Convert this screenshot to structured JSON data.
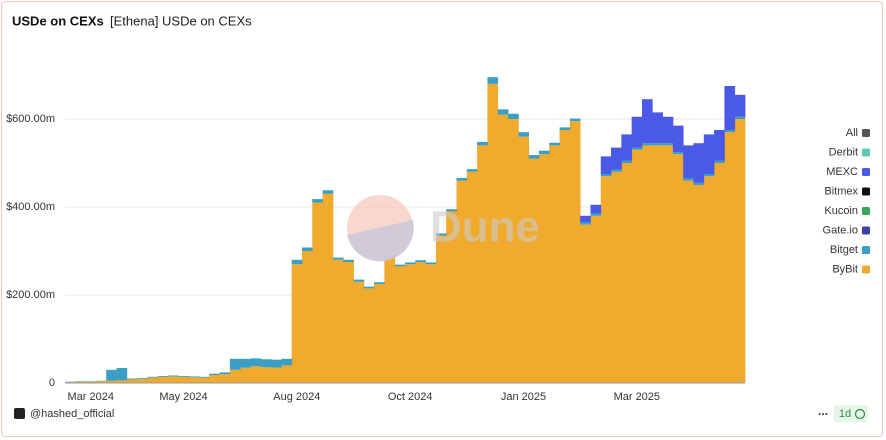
{
  "chart_data": {
    "type": "stacked_bar",
    "title": "USDe on CEXs",
    "subtitle": "[Ethena] USDe on CEXs",
    "watermark": "Dune",
    "footer": "@hashed_official",
    "menu": "...",
    "interval": "1d",
    "legend_all": {
      "label": "All",
      "color": "#555555"
    },
    "categories": [
      null,
      null,
      "Mar 2024",
      null,
      null,
      null,
      null,
      null,
      null,
      null,
      null,
      "May 2024",
      null,
      null,
      null,
      null,
      null,
      null,
      null,
      null,
      null,
      null,
      "Aug 2024",
      null,
      null,
      null,
      null,
      null,
      null,
      null,
      null,
      null,
      null,
      "Oct 2024",
      null,
      null,
      null,
      null,
      null,
      null,
      null,
      null,
      null,
      null,
      "Jan 2025",
      null,
      null,
      null,
      null,
      null,
      null,
      null,
      null,
      null,
      null,
      "Mar 2025",
      null,
      null,
      null,
      null,
      null,
      null,
      null,
      null,
      null,
      null
    ],
    "ylim": [
      0,
      750
    ],
    "yticks": [
      0,
      {
        "value": 200,
        "label": "$200.00m"
      },
      {
        "value": 400,
        "label": "$400.00m"
      },
      {
        "value": 600,
        "label": "$600.00m"
      }
    ],
    "grid": true,
    "legend": "right",
    "series": [
      {
        "name": "Derbit",
        "color": "#5cc9b6",
        "values": [
          0,
          0,
          0,
          0,
          0,
          0,
          0,
          0,
          0,
          0,
          0,
          0,
          0,
          0,
          0,
          0,
          0,
          0,
          0,
          0,
          0,
          0,
          0,
          0,
          0,
          0,
          0,
          0,
          0,
          0,
          0,
          0,
          0,
          0,
          0,
          0,
          0,
          0,
          0,
          0,
          0,
          0,
          0,
          0,
          0,
          0,
          0,
          0,
          0,
          0,
          0,
          0,
          0,
          0,
          0,
          0,
          0,
          0,
          0,
          0,
          0,
          0,
          0,
          0,
          0,
          0
        ]
      },
      {
        "name": "MEXC",
        "color": "#4a5ae6",
        "values": [
          0,
          0,
          0,
          0,
          0,
          0,
          0,
          0,
          0,
          0,
          0,
          0,
          0,
          0,
          0,
          0,
          0,
          0,
          0,
          0,
          0,
          0,
          0,
          0,
          0,
          0,
          0,
          0,
          0,
          0,
          0,
          0,
          0,
          0,
          0,
          0,
          0,
          0,
          0,
          0,
          0,
          0,
          0,
          0,
          0,
          0,
          0,
          0,
          0,
          0,
          15,
          20,
          40,
          50,
          60,
          70,
          100,
          70,
          60,
          60,
          75,
          90,
          90,
          70,
          100,
          50
        ]
      },
      {
        "name": "Bitmex",
        "color": "#111111",
        "values": [
          0,
          0,
          0,
          0,
          0,
          0,
          0,
          0,
          0,
          0,
          0,
          0,
          0,
          0,
          0,
          0,
          0,
          0,
          0,
          0,
          0,
          0,
          0,
          0,
          0,
          0,
          0,
          0,
          0,
          0,
          0,
          0,
          0,
          0,
          0,
          0,
          0,
          0,
          0,
          0,
          0,
          0,
          0,
          0,
          0,
          0,
          0,
          0,
          0,
          0,
          0,
          0,
          0,
          0,
          0,
          0,
          0,
          0,
          0,
          0,
          0,
          0,
          0,
          0,
          0,
          0
        ]
      },
      {
        "name": "Kucoin",
        "color": "#38a757",
        "values": [
          0,
          0,
          0,
          0,
          0,
          0,
          0,
          0,
          0,
          0,
          0,
          0,
          0,
          0,
          0,
          0,
          0,
          0,
          0,
          0,
          0,
          0,
          0,
          0,
          0,
          0,
          0,
          0,
          0,
          0,
          0,
          0,
          0,
          0,
          0,
          0,
          0,
          0,
          0,
          0,
          0,
          0,
          0,
          0,
          0,
          0,
          0,
          0,
          0,
          0,
          0,
          0,
          0,
          0,
          0,
          0,
          0,
          0,
          0,
          0,
          0,
          0,
          0,
          0,
          0,
          0
        ]
      },
      {
        "name": "Gate.io",
        "color": "#3b3fa6",
        "values": [
          0,
          0,
          0,
          0,
          0,
          0,
          0,
          0,
          0,
          0,
          0,
          0,
          0,
          0,
          0,
          0,
          0,
          0,
          0,
          0,
          0,
          0,
          0,
          0,
          0,
          0,
          0,
          0,
          0,
          0,
          0,
          0,
          0,
          0,
          0,
          0,
          0,
          0,
          0,
          0,
          0,
          0,
          0,
          0,
          0,
          0,
          0,
          0,
          0,
          0,
          0,
          0,
          0,
          0,
          0,
          0,
          0,
          0,
          0,
          0,
          0,
          0,
          0,
          0,
          0,
          0
        ]
      },
      {
        "name": "Bitget",
        "color": "#3a9fc2",
        "values": [
          1,
          1,
          1,
          1,
          25,
          28,
          2,
          2,
          2,
          2,
          2,
          2,
          2,
          2,
          3,
          4,
          25,
          20,
          18,
          18,
          18,
          15,
          10,
          8,
          8,
          8,
          5,
          5,
          5,
          4,
          4,
          4,
          4,
          4,
          4,
          4,
          5,
          5,
          6,
          6,
          8,
          15,
          12,
          12,
          10,
          8,
          8,
          6,
          6,
          6,
          5,
          5,
          5,
          5,
          5,
          5,
          5,
          5,
          5,
          5,
          5,
          5,
          5,
          5,
          5,
          5
        ]
      },
      {
        "name": "ByBit",
        "color": "#f0aa2e",
        "values": [
          2,
          3,
          3,
          4,
          5,
          6,
          8,
          9,
          12,
          14,
          15,
          14,
          13,
          12,
          18,
          20,
          30,
          35,
          38,
          36,
          35,
          40,
          270,
          300,
          410,
          430,
          280,
          275,
          230,
          215,
          225,
          285,
          265,
          270,
          275,
          270,
          335,
          390,
          460,
          480,
          540,
          680,
          610,
          600,
          560,
          510,
          520,
          540,
          575,
          595,
          360,
          380,
          470,
          480,
          500,
          530,
          540,
          540,
          540,
          520,
          460,
          450,
          470,
          500,
          570,
          600
        ]
      }
    ]
  }
}
